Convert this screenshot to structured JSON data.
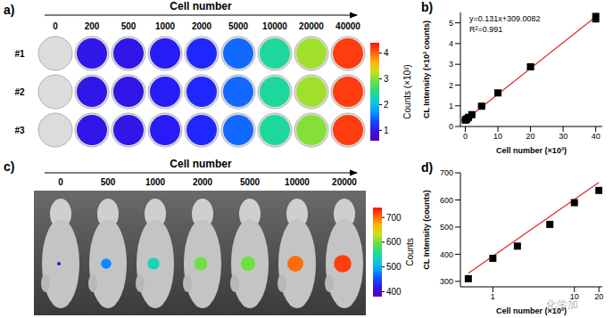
{
  "panels": {
    "a": {
      "label": "a)",
      "title": "Cell number",
      "columns": [
        0,
        200,
        500,
        1000,
        2000,
        5000,
        10000,
        20000,
        40000
      ],
      "rows": [
        "#1",
        "#2",
        "#3"
      ],
      "cells": [
        [
          null,
          1.0,
          1.0,
          1.1,
          1.2,
          1.5,
          2.4,
          3.1,
          4.2
        ],
        [
          null,
          1.0,
          1.0,
          1.1,
          1.2,
          1.5,
          2.4,
          3.1,
          4.2
        ],
        [
          null,
          1.0,
          1.0,
          1.1,
          1.2,
          1.5,
          2.4,
          3.0,
          4.2
        ]
      ],
      "colorbar": {
        "label": "Counts (×10³)",
        "range": [
          0.6,
          4.4
        ],
        "ticks": [
          1,
          2,
          3,
          4
        ]
      }
    },
    "c": {
      "label": "c)",
      "title": "Cell number",
      "columns": [
        0,
        500,
        1000,
        2000,
        5000,
        10000,
        20000
      ],
      "signal": [
        420,
        480,
        540,
        600,
        600,
        700,
        720
      ],
      "colorbar": {
        "label": "Counts",
        "range": [
          380,
          740
        ],
        "ticks": [
          400,
          500,
          600,
          700
        ]
      }
    },
    "watermark": "化学加"
  },
  "chart_data": [
    {
      "label": "b)",
      "type": "scatter",
      "x_label": "Cell number (×10³)",
      "y_label": "CL Intensity (×10³ counts)",
      "annotations": [
        "y=0.131x+309.0082",
        "R²=0.991"
      ],
      "xlim": [
        -1.5,
        42
      ],
      "xticks": [
        0,
        10,
        20,
        30,
        40
      ],
      "ylim": [
        0,
        5.5
      ],
      "yticks": [
        0,
        1,
        2,
        3,
        4,
        5
      ],
      "series": [
        {
          "type": "scatter",
          "color": "#000000",
          "marker": "square",
          "x": [
            0,
            0.2,
            0.5,
            1,
            2,
            5,
            10,
            20,
            40
          ],
          "values": [
            0.31,
            0.33,
            0.37,
            0.44,
            0.57,
            0.98,
            1.62,
            2.88,
            5.25
          ],
          "errors": [
            0.02,
            0.02,
            0.02,
            0.03,
            0.03,
            0.04,
            0.06,
            0.1,
            0.2
          ]
        },
        {
          "type": "line",
          "color": "#e03030",
          "x": [
            0,
            40
          ],
          "values": [
            0.31,
            5.3
          ]
        }
      ]
    },
    {
      "label": "d)",
      "type": "scatter",
      "log": "x",
      "x_label": "Cell number (×10³)",
      "y_label": "CL Intensity (counts)",
      "xlim": [
        0.4,
        22
      ],
      "xticks": [
        1,
        10,
        20
      ],
      "ylim": [
        280,
        700
      ],
      "yticks": [
        300,
        400,
        500,
        600,
        700
      ],
      "series": [
        {
          "type": "scatter",
          "color": "#000000",
          "marker": "square",
          "x": [
            0.5,
            1,
            2,
            5,
            10,
            20
          ],
          "values": [
            310,
            385,
            430,
            510,
            590,
            635
          ]
        },
        {
          "type": "line",
          "color": "#e03030",
          "x": [
            0.5,
            20
          ],
          "values": [
            330,
            665
          ]
        }
      ]
    }
  ]
}
